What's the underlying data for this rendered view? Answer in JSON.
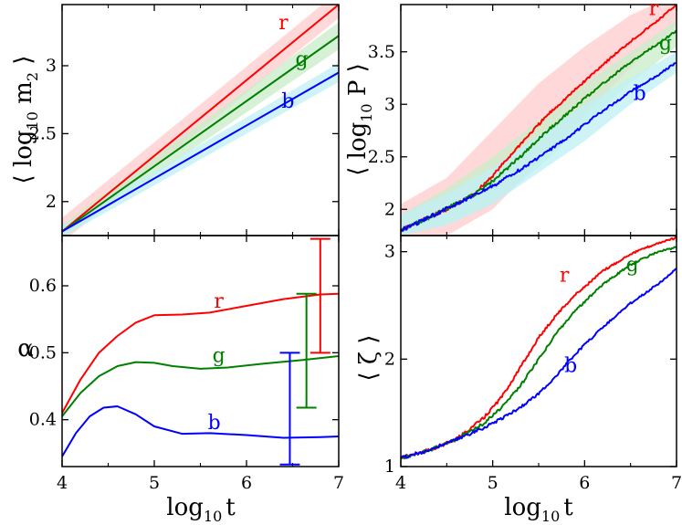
{
  "figure_title": "",
  "colors": {
    "r": "#ff0000",
    "g": "#008000",
    "b": "#0000ff",
    "axis": "#000000"
  },
  "chart_data": [
    {
      "id": "top-left",
      "type": "line",
      "title": "",
      "xlabel": "",
      "ylabel": "⟨ log10 m2 ⟩",
      "ylabel_parts": {
        "pre": "⟨ log",
        "sub1": "10",
        "mid": " m",
        "sub2": "2",
        "post": " ⟩"
      },
      "xlim": [
        4,
        7
      ],
      "ylim": [
        1.75,
        3.45
      ],
      "xticks": [
        4,
        5,
        6,
        7
      ],
      "yticks": [
        2,
        2.5,
        3
      ],
      "ytick_labels": [
        "2",
        "2.5",
        "3"
      ],
      "show_xtick_labels": false,
      "series": [
        {
          "name": "r",
          "color": "#ff0000",
          "x": [
            4,
            7
          ],
          "y": [
            1.78,
            3.45
          ],
          "band": {
            "x": [
              4,
              7
            ],
            "lower": [
              1.7,
              3.35
            ],
            "upper": [
              1.88,
              3.55
            ]
          },
          "label_pos": [
            6.4,
            3.27
          ]
        },
        {
          "name": "g",
          "color": "#008000",
          "x": [
            4,
            7
          ],
          "y": [
            1.78,
            3.22
          ],
          "band": {
            "x": [
              4,
              7
            ],
            "lower": [
              1.73,
              3.12
            ],
            "upper": [
              1.83,
              3.32
            ]
          },
          "label_pos": [
            6.6,
            3.0
          ]
        },
        {
          "name": "b",
          "color": "#0000ff",
          "x": [
            4,
            7
          ],
          "y": [
            1.78,
            2.95
          ],
          "band": {
            "x": [
              4,
              7
            ],
            "lower": [
              1.74,
              2.88
            ],
            "upper": [
              1.82,
              3.02
            ]
          },
          "label_pos": [
            6.45,
            2.69
          ]
        }
      ]
    },
    {
      "id": "top-right",
      "type": "line",
      "title": "",
      "xlabel": "",
      "ylabel": "⟨ log10 P ⟩",
      "ylabel_parts": {
        "pre": "⟨ log",
        "sub1": "10",
        "mid": " P",
        "sub2": "",
        "post": " ⟩"
      },
      "xlim": [
        4,
        7
      ],
      "ylim": [
        1.75,
        3.95
      ],
      "xticks": [
        4,
        5,
        6,
        7
      ],
      "yticks": [
        2,
        2.5,
        3,
        3.5
      ],
      "ytick_labels": [
        "2",
        "2.5",
        "3",
        "3.5"
      ],
      "show_xtick_labels": false,
      "series": [
        {
          "name": "r",
          "color": "#ff0000",
          "x": [
            4.0,
            4.3,
            4.6,
            4.8,
            5.0,
            5.3,
            5.6,
            5.9,
            6.2,
            6.5,
            6.8,
            7.0
          ],
          "y": [
            1.8,
            1.92,
            2.04,
            2.15,
            2.32,
            2.62,
            2.9,
            3.14,
            3.38,
            3.6,
            3.8,
            3.95
          ],
          "band": {
            "x": [
              4.0,
              4.5,
              5.0,
              5.5,
              6.0,
              6.5,
              7.0
            ],
            "lower": [
              1.7,
              1.75,
              2.0,
              2.45,
              2.9,
              3.35,
              3.75
            ],
            "upper": [
              2.05,
              2.3,
              2.75,
              3.2,
              3.55,
              3.85,
              4.05
            ]
          },
          "label_pos": [
            6.75,
            3.85
          ]
        },
        {
          "name": "g",
          "color": "#008000",
          "x": [
            4.0,
            4.3,
            4.6,
            4.8,
            5.0,
            5.3,
            5.6,
            5.9,
            6.2,
            6.5,
            6.8,
            7.0
          ],
          "y": [
            1.8,
            1.92,
            2.05,
            2.14,
            2.27,
            2.5,
            2.75,
            2.98,
            3.2,
            3.4,
            3.58,
            3.7
          ],
          "band": {
            "x": [
              4.0,
              4.5,
              5.0,
              5.5,
              6.0,
              6.5,
              7.0
            ],
            "lower": [
              1.75,
              1.85,
              2.05,
              2.4,
              2.8,
              3.2,
              3.55
            ],
            "upper": [
              1.95,
              2.2,
              2.5,
              2.85,
              3.2,
              3.5,
              3.8
            ]
          },
          "label_pos": [
            6.88,
            3.52
          ]
        },
        {
          "name": "b",
          "color": "#0000ff",
          "x": [
            4.0,
            4.3,
            4.6,
            4.8,
            5.0,
            5.3,
            5.6,
            5.9,
            6.2,
            6.5,
            6.8,
            7.0
          ],
          "y": [
            1.8,
            1.92,
            2.05,
            2.13,
            2.22,
            2.38,
            2.55,
            2.74,
            2.94,
            3.12,
            3.28,
            3.4
          ],
          "band": {
            "x": [
              4.0,
              4.5,
              5.0,
              5.5,
              6.0,
              6.5,
              7.0
            ],
            "lower": [
              1.75,
              1.85,
              2.05,
              2.35,
              2.65,
              3.0,
              3.3
            ],
            "upper": [
              1.95,
              2.15,
              2.4,
              2.7,
              3.0,
              3.25,
              3.5
            ]
          },
          "label_pos": [
            6.6,
            3.04
          ]
        }
      ]
    },
    {
      "id": "bottom-left",
      "type": "line",
      "title": "",
      "xlabel": "log 10 t",
      "xlabel_parts": {
        "pre": "log",
        "sub": "10",
        "post": "t"
      },
      "ylabel": "α",
      "xlim": [
        4,
        7
      ],
      "ylim": [
        0.33,
        0.675
      ],
      "xticks": [
        4,
        5,
        6,
        7
      ],
      "xtick_labels": [
        "4",
        "5",
        "6",
        "7"
      ],
      "yticks": [
        0.4,
        0.5,
        0.6
      ],
      "ytick_labels": [
        "0.4",
        "0.5",
        "0.6"
      ],
      "show_xtick_labels": true,
      "series": [
        {
          "name": "r",
          "color": "#ff0000",
          "x": [
            4.0,
            4.2,
            4.4,
            4.6,
            4.8,
            5.0,
            5.3,
            5.6,
            6.0,
            6.4,
            6.8,
            7.0
          ],
          "y": [
            0.41,
            0.46,
            0.5,
            0.525,
            0.545,
            0.556,
            0.557,
            0.56,
            0.57,
            0.58,
            0.587,
            0.588
          ],
          "errorbar": {
            "x": 6.8,
            "low": 0.5,
            "high": 0.67
          },
          "label_pos": [
            5.7,
            0.567
          ]
        },
        {
          "name": "g",
          "color": "#008000",
          "x": [
            4.0,
            4.2,
            4.4,
            4.6,
            4.8,
            5.0,
            5.2,
            5.5,
            5.8,
            6.2,
            6.6,
            7.0
          ],
          "y": [
            0.405,
            0.44,
            0.465,
            0.48,
            0.486,
            0.485,
            0.48,
            0.476,
            0.478,
            0.484,
            0.489,
            0.495
          ],
          "errorbar": {
            "x": 6.65,
            "low": 0.418,
            "high": 0.588
          },
          "label_pos": [
            5.7,
            0.486
          ]
        },
        {
          "name": "b",
          "color": "#0000ff",
          "x": [
            4.0,
            4.15,
            4.3,
            4.45,
            4.6,
            4.8,
            5.0,
            5.3,
            5.6,
            6.0,
            6.4,
            6.8,
            7.0
          ],
          "y": [
            0.345,
            0.38,
            0.405,
            0.418,
            0.42,
            0.408,
            0.39,
            0.379,
            0.38,
            0.377,
            0.373,
            0.374,
            0.375
          ],
          "errorbar": {
            "x": 6.47,
            "low": 0.333,
            "high": 0.5
          },
          "label_pos": [
            5.65,
            0.386
          ]
        }
      ]
    },
    {
      "id": "bottom-right",
      "type": "line",
      "title": "",
      "xlabel": "log 10 t",
      "xlabel_parts": {
        "pre": "log",
        "sub": "10",
        "post": "t"
      },
      "ylabel": "⟨ ζ ⟩",
      "xlim": [
        4,
        7
      ],
      "ylim": [
        1,
        3.15
      ],
      "xticks": [
        4,
        5,
        6,
        7
      ],
      "xtick_labels": [
        "4",
        "5",
        "6",
        "7"
      ],
      "yticks": [
        1,
        2,
        3
      ],
      "ytick_labels": [
        "1",
        "2",
        "3"
      ],
      "show_xtick_labels": true,
      "series": [
        {
          "name": "r",
          "color": "#ff0000",
          "x": [
            4.0,
            4.3,
            4.6,
            4.9,
            5.1,
            5.3,
            5.5,
            5.7,
            5.9,
            6.2,
            6.5,
            6.8,
            7.0
          ],
          "y": [
            1.08,
            1.15,
            1.25,
            1.45,
            1.65,
            1.92,
            2.2,
            2.42,
            2.6,
            2.82,
            2.98,
            3.08,
            3.13
          ],
          "label_pos": [
            5.78,
            2.72
          ]
        },
        {
          "name": "g",
          "color": "#008000",
          "x": [
            4.0,
            4.3,
            4.6,
            4.9,
            5.1,
            5.3,
            5.5,
            5.7,
            5.9,
            6.2,
            6.5,
            6.8,
            7.0
          ],
          "y": [
            1.08,
            1.15,
            1.25,
            1.4,
            1.55,
            1.75,
            2.0,
            2.25,
            2.45,
            2.7,
            2.88,
            3.0,
            3.04
          ],
          "label_pos": [
            6.52,
            2.82
          ]
        },
        {
          "name": "b",
          "color": "#0000ff",
          "x": [
            4.0,
            4.3,
            4.6,
            4.9,
            5.1,
            5.3,
            5.5,
            5.7,
            5.9,
            6.2,
            6.5,
            6.8,
            7.0
          ],
          "y": [
            1.08,
            1.15,
            1.25,
            1.36,
            1.45,
            1.55,
            1.68,
            1.85,
            2.05,
            2.3,
            2.52,
            2.7,
            2.84
          ],
          "label_pos": [
            5.85,
            1.88
          ]
        }
      ]
    }
  ]
}
